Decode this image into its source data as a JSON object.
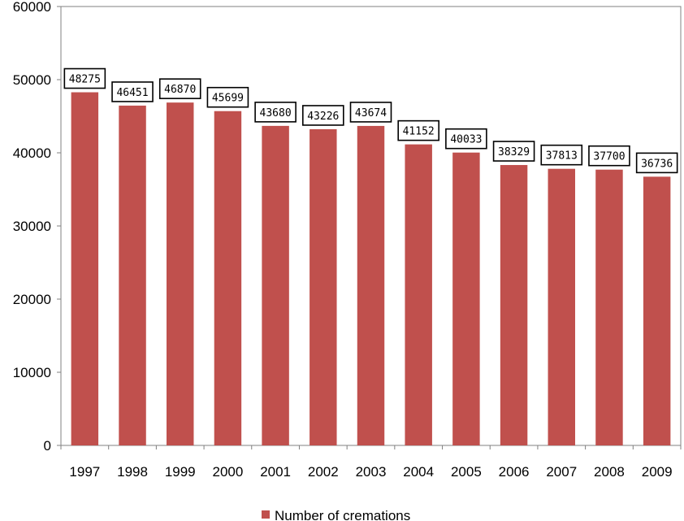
{
  "chart_data": {
    "type": "bar",
    "title": "",
    "xlabel": "",
    "ylabel": "",
    "categories": [
      "1997",
      "1998",
      "1999",
      "2000",
      "2001",
      "2002",
      "2003",
      "2004",
      "2005",
      "2006",
      "2007",
      "2008",
      "2009"
    ],
    "series": [
      {
        "name": "Number of cremations",
        "color": "#c0504d",
        "values": [
          48275,
          46451,
          46870,
          45699,
          43680,
          43226,
          43674,
          41152,
          40033,
          38329,
          37813,
          37700,
          36736
        ]
      }
    ],
    "ylim": [
      0,
      60000
    ],
    "yticks": [
      0,
      10000,
      20000,
      30000,
      40000,
      50000,
      60000
    ],
    "grid": false,
    "data_labels": true,
    "legend_position": "bottom"
  }
}
